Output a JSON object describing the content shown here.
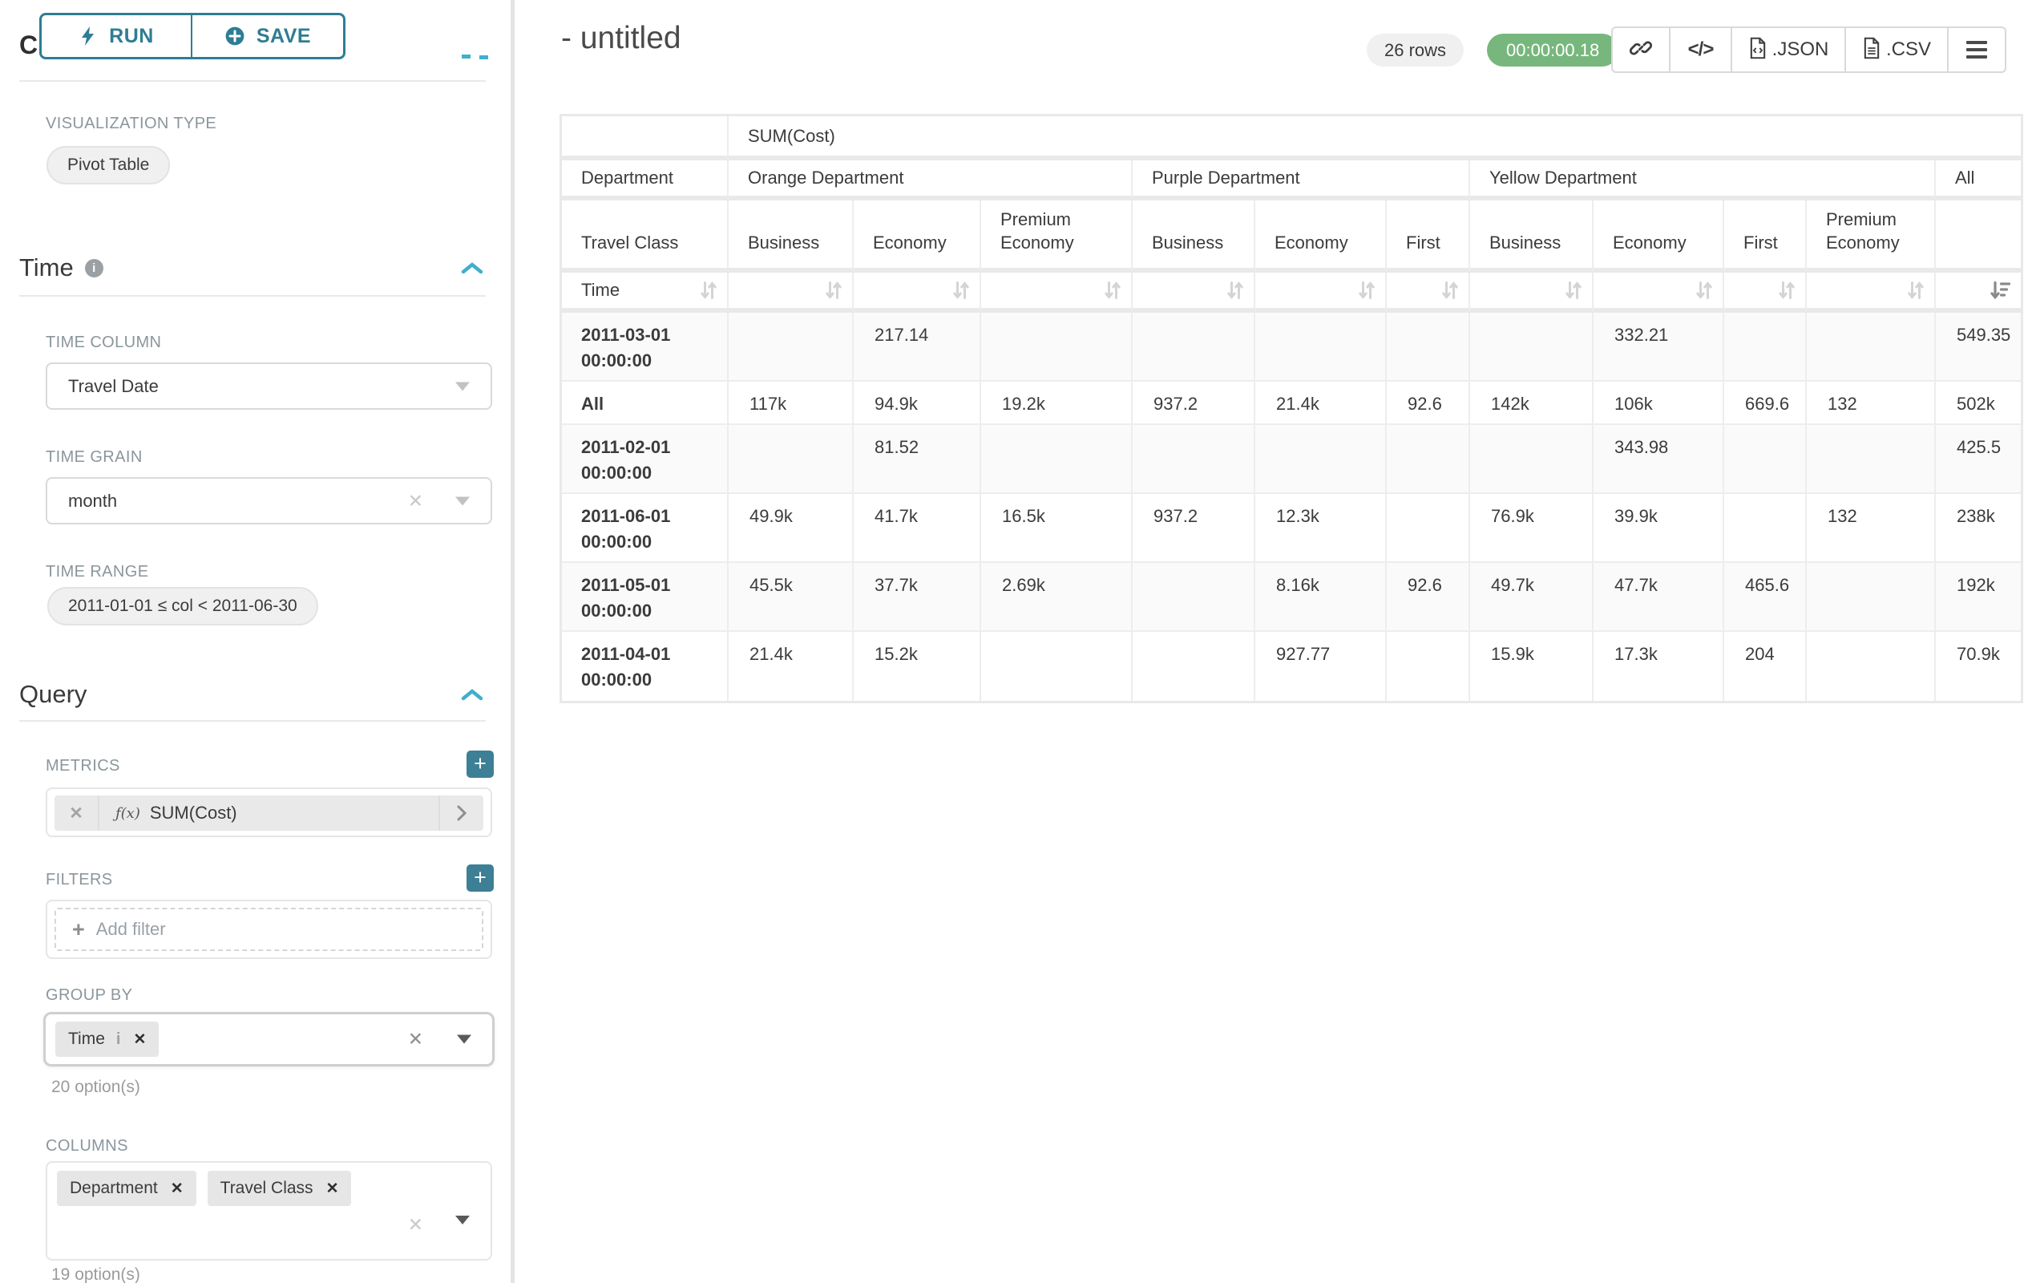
{
  "colors": {
    "accent_teal": "#2e7d93",
    "plus_button_teal": "#3d7f95",
    "timer_green": "#77b77d",
    "collapse_chevron_blue": "#41aecd"
  },
  "sidebar": {
    "run_button": "RUN",
    "save_button": "SAVE",
    "chart_type_heading": "Chart Type",
    "visualization_type": {
      "label": "VISUALIZATION TYPE",
      "value": "Pivot Table"
    },
    "time": {
      "title": "Time",
      "time_column": {
        "label": "TIME COLUMN",
        "value": "Travel Date"
      },
      "time_grain": {
        "label": "TIME GRAIN",
        "value": "month"
      },
      "time_range": {
        "label": "TIME RANGE",
        "value": "2011-01-01 ≤ col < 2011-06-30"
      }
    },
    "query": {
      "title": "Query",
      "metrics": {
        "label": "METRICS",
        "fx": "ƒ(x)",
        "value": "SUM(Cost)"
      },
      "filters": {
        "label": "FILTERS",
        "placeholder": "Add filter"
      },
      "group_by": {
        "label": "GROUP BY",
        "tags": [
          "Time"
        ],
        "options_hint": "20 option(s)"
      },
      "columns": {
        "label": "COLUMNS",
        "tags": [
          "Department",
          "Travel Class"
        ],
        "options_hint": "19 option(s)"
      }
    }
  },
  "header": {
    "title": "- untitled",
    "row_count": "26 rows",
    "timer": "00:00:00.18",
    "export_json_label": ".JSON",
    "export_csv_label": ".CSV"
  },
  "pivot": {
    "metric_header": "SUM(Cost)",
    "row_dim_level1": "Department",
    "row_dim_level2": "Travel Class",
    "row_dim_level3": "Time",
    "column_groups": [
      {
        "label": "Orange Department",
        "children": [
          "Business",
          "Economy",
          "Premium Economy"
        ]
      },
      {
        "label": "Purple Department",
        "children": [
          "Business",
          "Economy",
          "First"
        ]
      },
      {
        "label": "Yellow Department",
        "children": [
          "Business",
          "Economy",
          "First",
          "Premium Economy"
        ]
      },
      {
        "label": "All",
        "children": [
          ""
        ]
      }
    ],
    "rows": [
      {
        "label": "2011-03-01 00:00:00",
        "tall": true,
        "values": [
          "",
          "217.14",
          "",
          "",
          "",
          "",
          "",
          "332.21",
          "",
          "",
          "549.35"
        ]
      },
      {
        "label": "All",
        "tall": false,
        "values": [
          "117k",
          "94.9k",
          "19.2k",
          "937.2",
          "21.4k",
          "92.6",
          "142k",
          "106k",
          "669.6",
          "132",
          "502k"
        ]
      },
      {
        "label": "2011-02-01 00:00:00",
        "tall": true,
        "values": [
          "",
          "81.52",
          "",
          "",
          "",
          "",
          "",
          "343.98",
          "",
          "",
          "425.5"
        ]
      },
      {
        "label": "2011-06-01 00:00:00",
        "tall": true,
        "values": [
          "49.9k",
          "41.7k",
          "16.5k",
          "937.2",
          "12.3k",
          "",
          "76.9k",
          "39.9k",
          "",
          "132",
          "238k"
        ]
      },
      {
        "label": "2011-05-01 00:00:00",
        "tall": true,
        "values": [
          "45.5k",
          "37.7k",
          "2.69k",
          "",
          "8.16k",
          "92.6",
          "49.7k",
          "47.7k",
          "465.6",
          "",
          "192k"
        ]
      },
      {
        "label": "2011-04-01 00:00:00",
        "tall": true,
        "values": [
          "21.4k",
          "15.2k",
          "",
          "",
          "927.77",
          "",
          "15.9k",
          "17.3k",
          "204",
          "",
          "70.9k"
        ]
      }
    ]
  }
}
